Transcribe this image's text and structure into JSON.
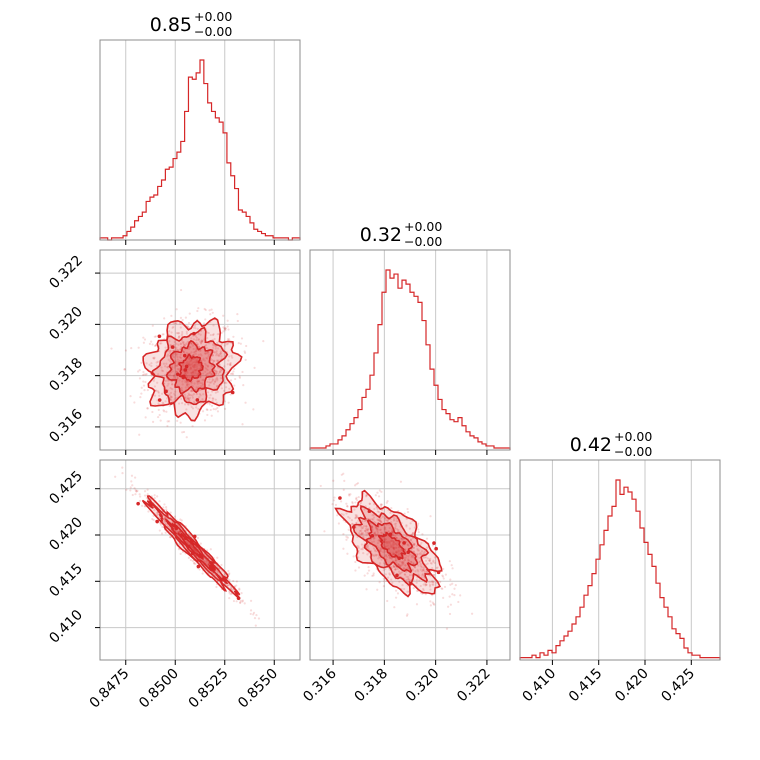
{
  "chart_data": {
    "type": "corner",
    "color": "#d62728",
    "grid": true,
    "parameters": [
      {
        "index": 0,
        "title": {
          "value": "0.85",
          "upper": "+0.00",
          "lower": "−0.00"
        },
        "range": [
          0.8462,
          0.8563
        ],
        "ticks": [
          0.8475,
          0.85,
          0.8525,
          0.855
        ],
        "tick_labels": [
          "0.8475",
          "0.8500",
          "0.8525",
          "0.8550"
        ],
        "mean": 0.8508,
        "sd": 0.0011
      },
      {
        "index": 1,
        "title": {
          "value": "0.32",
          "upper": "+0.00",
          "lower": "−0.00"
        },
        "range": [
          0.3151,
          0.3229
        ],
        "ticks": [
          0.316,
          0.318,
          0.32,
          0.322
        ],
        "tick_labels": [
          "0.316",
          "0.318",
          "0.320",
          "0.322"
        ],
        "mean": 0.3183,
        "sd": 0.0009
      },
      {
        "index": 2,
        "title": {
          "value": "0.42",
          "upper": "+0.00",
          "lower": "−0.00"
        },
        "range": [
          0.4065,
          0.4281
        ],
        "ticks": [
          0.41,
          0.415,
          0.42,
          0.425
        ],
        "tick_labels": [
          "0.410",
          "0.415",
          "0.420",
          "0.425"
        ],
        "mean": 0.4188,
        "sd": 0.0025
      }
    ],
    "histograms": [
      {
        "param": 0,
        "bin_edges_range": [
          0.8462,
          0.8563
        ],
        "counts": [
          1,
          1,
          0,
          1,
          1,
          1,
          2,
          4,
          6,
          9,
          11,
          13,
          18,
          20,
          21,
          25,
          28,
          33,
          34,
          38,
          41,
          46,
          60,
          76,
          75,
          78,
          84,
          73,
          64,
          60,
          57,
          55,
          50,
          36,
          30,
          24,
          14,
          13,
          11,
          8,
          5,
          4,
          3,
          2,
          2,
          1,
          1,
          1,
          1,
          0,
          1,
          1
        ]
      },
      {
        "param": 1,
        "bin_edges_range": [
          0.3151,
          0.3229
        ],
        "counts": [
          1,
          1,
          1,
          1,
          2,
          3,
          3,
          5,
          7,
          10,
          13,
          16,
          20,
          26,
          30,
          37,
          48,
          62,
          78,
          89,
          85,
          87,
          80,
          84,
          82,
          78,
          76,
          73,
          64,
          52,
          40,
          32,
          25,
          20,
          18,
          15,
          14,
          16,
          12,
          9,
          7,
          6,
          4,
          3,
          2,
          2,
          1,
          1,
          1,
          1
        ]
      },
      {
        "param": 2,
        "bin_edges_range": [
          0.4065,
          0.4281
        ],
        "counts": [
          1,
          1,
          1,
          2,
          1,
          3,
          2,
          4,
          3,
          6,
          8,
          10,
          12,
          15,
          18,
          22,
          27,
          31,
          36,
          42,
          48,
          54,
          60,
          64,
          75,
          69,
          72,
          70,
          67,
          62,
          55,
          49,
          44,
          39,
          32,
          26,
          22,
          18,
          13,
          11,
          9,
          5,
          3,
          2,
          2,
          1,
          1,
          1,
          1,
          1
        ]
      }
    ],
    "contours_2d": [
      {
        "x_param": 0,
        "y_param": 1,
        "correlation": 0.1,
        "levels": [
          0.5,
          1.0,
          1.5,
          2.0
        ]
      },
      {
        "x_param": 0,
        "y_param": 2,
        "correlation": -0.97,
        "levels": [
          0.5,
          1.0,
          1.5,
          2.0
        ]
      },
      {
        "x_param": 1,
        "y_param": 2,
        "correlation": -0.6,
        "levels": [
          0.5,
          1.0,
          1.5,
          2.0
        ]
      }
    ]
  }
}
